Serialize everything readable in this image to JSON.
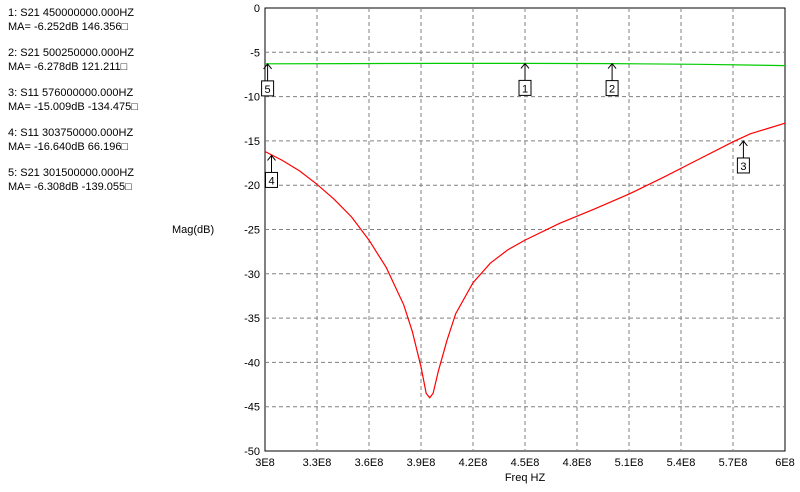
{
  "markers_panel": [
    {
      "line1": "1: S21  450000000.000HZ",
      "line2": "MA= -6.252dB 146.356□"
    },
    {
      "line1": "2: S21  500250000.000HZ",
      "line2": "MA= -6.278dB 121.211□"
    },
    {
      "line1": "3: S11  576000000.000HZ",
      "line2": "MA= -15.009dB -134.475□"
    },
    {
      "line1": "4: S11  303750000.000HZ",
      "line2": "MA= -16.640dB 66.196□"
    },
    {
      "line1": "5: S21  301500000.000HZ",
      "line2": "MA= -6.308dB -139.055□"
    }
  ],
  "chart_data": {
    "type": "line",
    "title": "",
    "xlabel": "Freq HZ",
    "ylabel": "Mag(dB)",
    "xlim": [
      300000000,
      600000000
    ],
    "ylim": [
      -50,
      0
    ],
    "grid": true,
    "x_ticks": [
      300000000,
      330000000,
      360000000,
      390000000,
      420000000,
      450000000,
      480000000,
      510000000,
      540000000,
      570000000,
      600000000
    ],
    "x_tick_labels": [
      "3E8",
      "3.3E8",
      "3.6E8",
      "3.9E8",
      "4.2E8",
      "4.5E8",
      "4.8E8",
      "5.1E8",
      "5.4E8",
      "5.7E8",
      "6E8"
    ],
    "y_ticks": [
      0,
      -5,
      -10,
      -15,
      -20,
      -25,
      -30,
      -35,
      -40,
      -45,
      -50
    ],
    "y_tick_labels": [
      "0",
      "-5",
      "-10",
      "-15",
      "-20",
      "-25",
      "-30",
      "-35",
      "-40",
      "-45",
      "-50"
    ],
    "series": [
      {
        "color": "#00cc00",
        "x": [
          300000000,
          350000000,
          400000000,
          450000000,
          500000000,
          550000000,
          600000000
        ],
        "y": [
          -6.3,
          -6.27,
          -6.25,
          -6.25,
          -6.28,
          -6.35,
          -6.5
        ]
      },
      {
        "color": "#ff0000",
        "x": [
          300000000,
          310000000,
          320000000,
          330000000,
          340000000,
          350000000,
          360000000,
          370000000,
          380000000,
          385000000,
          390000000,
          393000000,
          395000000,
          397000000,
          400000000,
          405000000,
          410000000,
          420000000,
          430000000,
          440000000,
          450000000,
          470000000,
          490000000,
          510000000,
          530000000,
          550000000,
          570000000,
          580000000,
          590000000,
          600000000
        ],
        "y": [
          -16.2,
          -17.2,
          -18.4,
          -19.9,
          -21.6,
          -23.6,
          -26.2,
          -29.3,
          -33.5,
          -36.5,
          -40.5,
          -43.5,
          -44.0,
          -43.5,
          -41.0,
          -37.5,
          -34.5,
          -31.0,
          -28.8,
          -27.3,
          -26.2,
          -24.3,
          -22.7,
          -21.0,
          -19.1,
          -17.1,
          -15.1,
          -14.2,
          -13.6,
          -13.0
        ]
      }
    ],
    "markers": [
      {
        "label": "1",
        "x": 450000000,
        "y": -6.252
      },
      {
        "label": "2",
        "x": 500250000,
        "y": -6.278
      },
      {
        "label": "3",
        "x": 576000000,
        "y": -15.009
      },
      {
        "label": "4",
        "x": 303750000,
        "y": -16.64
      },
      {
        "label": "5",
        "x": 301500000,
        "y": -6.308
      }
    ]
  }
}
